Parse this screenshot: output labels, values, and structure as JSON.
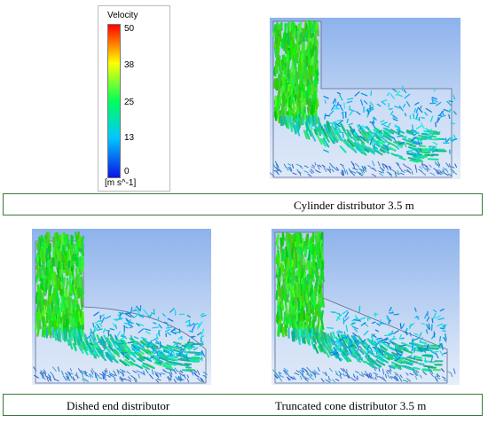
{
  "legend": {
    "title": "Velocity",
    "ticks": [
      "50",
      "38",
      "25",
      "13",
      "0"
    ],
    "unit": "[m s^-1]",
    "colors": [
      "#0a14e6",
      "#00c8ff",
      "#00ff5a",
      "#ffff00",
      "#ff0000"
    ]
  },
  "captions": {
    "cylinder": "Cylinder distributor 3.5 m",
    "dished": "Dished end distributor",
    "cone": "Truncated cone distributor 3.5 m"
  },
  "colors": {
    "caption_border": "#3a7a3a",
    "panel_background": "#a9c4f0"
  }
}
